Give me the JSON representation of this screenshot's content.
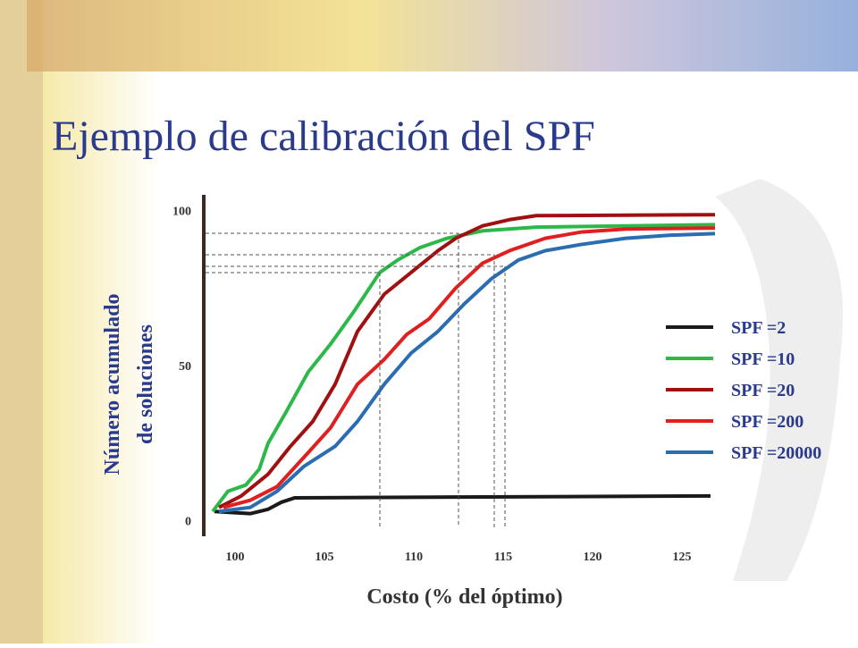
{
  "chart_data": {
    "type": "line",
    "title": "Ejemplo de calibración del SPF",
    "xlabel": "Costo (% del óptimo)",
    "ylabel": [
      "Número acumulado",
      "de soluciones"
    ],
    "xlim": [
      98.25,
      126.85
    ],
    "ylim": [
      -5,
      105
    ],
    "xticks": [
      100,
      105,
      110,
      115,
      120,
      125
    ],
    "yticks": [
      0,
      50,
      100
    ],
    "series": [
      {
        "name": "SPF =2",
        "color": "#1a1a1a",
        "x": [
          98.85,
          100.85,
          101.85,
          102.6,
          103.35,
          126.6
        ],
        "values": [
          3,
          2.3,
          3.7,
          6,
          7.4,
          8
        ]
      },
      {
        "name": "SPF =10",
        "color": "#2db84a",
        "x": [
          98.75,
          99.6,
          100.6,
          101.35,
          101.85,
          102.85,
          104.1,
          105.35,
          106.6,
          108.1,
          109.1,
          110.35,
          111.85,
          113.85,
          116.85,
          121.85,
          126.85
        ],
        "values": [
          3,
          9.5,
          11.5,
          16.6,
          25,
          35,
          48,
          57,
          67,
          80,
          84,
          88,
          91,
          93.4,
          94.6,
          95,
          95.4
        ]
      },
      {
        "name": "SPF =20",
        "color": "#a01010",
        "x": [
          99.1,
          100.35,
          101.85,
          103.1,
          104.35,
          105.6,
          106.85,
          108.35,
          109.85,
          111.35,
          112.35,
          113.85,
          115.35,
          116.85,
          126.85
        ],
        "values": [
          4.3,
          8,
          15,
          24,
          32,
          44,
          61,
          73,
          80,
          87,
          91,
          95,
          97,
          98.3,
          98.6
        ]
      },
      {
        "name": "SPF =200",
        "color": "#e02020",
        "x": [
          99.35,
          100.85,
          102.35,
          104.1,
          105.35,
          106.85,
          108.35,
          109.6,
          110.85,
          112.35,
          113.85,
          115.35,
          117.35,
          119.35,
          121.85,
          126.85
        ],
        "values": [
          4.3,
          6.6,
          11,
          22,
          30,
          44,
          52,
          60,
          65,
          75,
          83,
          87,
          91,
          93,
          94,
          94.3
        ]
      },
      {
        "name": "SPF =20000",
        "color": "#2a6db0",
        "x": [
          99.1,
          100.85,
          102.35,
          103.85,
          105.6,
          106.85,
          108.35,
          109.85,
          111.35,
          112.85,
          114.35,
          115.85,
          117.35,
          119.35,
          121.85,
          124.35,
          126.85
        ],
        "values": [
          3,
          4.3,
          9.5,
          17.5,
          24,
          32,
          44,
          54,
          61,
          70,
          78,
          84,
          87,
          89,
          91,
          92,
          92.5
        ]
      }
    ]
  }
}
